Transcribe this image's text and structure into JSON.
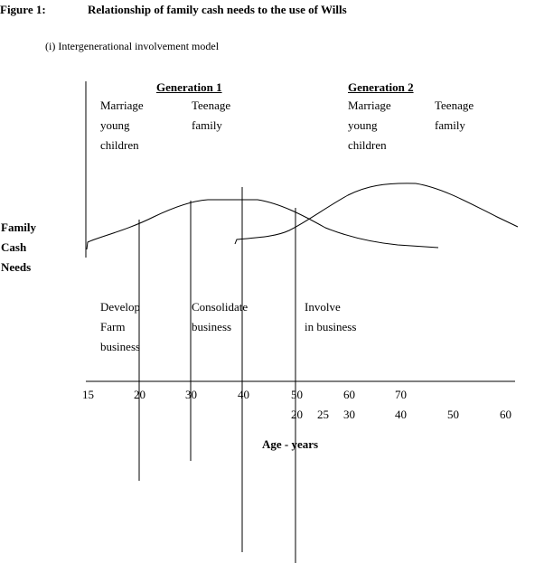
{
  "figure": {
    "label": "Figure 1:",
    "title": "Relationship of family cash needs to the use of  Wills",
    "subtitle": "(i) Intergenerational involvement model"
  },
  "generations": [
    {
      "heading": "Generation 1",
      "stages": [
        {
          "lines": [
            "Marriage",
            "young",
            "children"
          ]
        },
        {
          "lines": [
            "Teenage",
            "family"
          ]
        }
      ]
    },
    {
      "heading": "Generation 2",
      "stages": [
        {
          "lines": [
            "Marriage",
            "young",
            "children"
          ]
        },
        {
          "lines": [
            "Teenage",
            "family"
          ]
        }
      ]
    }
  ],
  "y_axis_label": [
    "Family",
    "Cash",
    "Needs"
  ],
  "phases": [
    {
      "lines": [
        "Develop",
        "Farm",
        "business"
      ]
    },
    {
      "lines": [
        "Consolidate",
        "business"
      ]
    },
    {
      "lines": [
        "Involve",
        "in business"
      ]
    }
  ],
  "axis": {
    "gen1_ticks": [
      "15",
      "20",
      "30",
      "40",
      "50",
      "60",
      "70"
    ],
    "gen2_ticks": [
      "20",
      "25",
      "30",
      "40",
      "50",
      "60"
    ],
    "label": "Age - years"
  }
}
